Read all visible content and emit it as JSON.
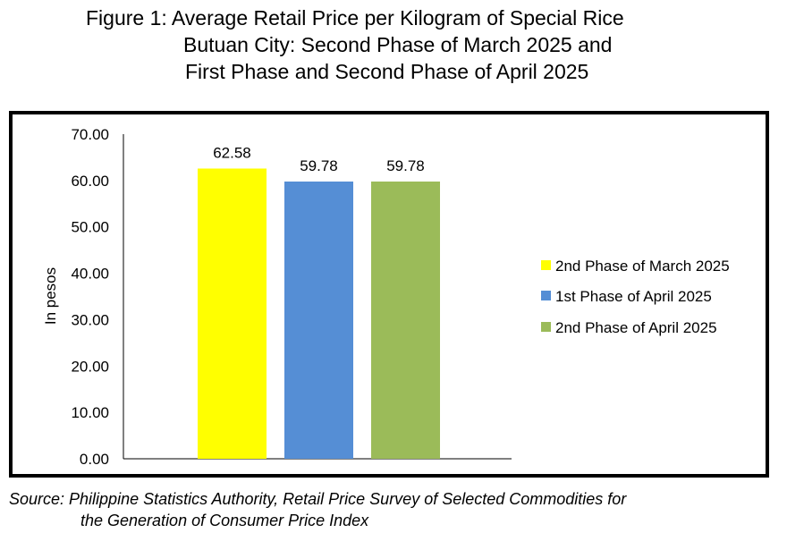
{
  "title": {
    "line1": "Figure 1: Average Retail Price per Kilogram of Special Rice",
    "line2": "Butuan City: Second Phase of March 2025 and",
    "line3": "First Phase and Second Phase of April 2025"
  },
  "source": {
    "line1": "Source: Philippine Statistics Authority, Retail Price Survey of Selected Commodities for",
    "line2": "the Generation of Consumer Price Index"
  },
  "chart_data": {
    "type": "bar",
    "categories": [
      "2nd Phase of March 2025",
      "1st Phase of April 2025",
      "2nd Phase of April 2025"
    ],
    "values": [
      62.58,
      59.78,
      59.78
    ],
    "data_labels": [
      "62.58",
      "59.78",
      "59.78"
    ],
    "colors": [
      "#FFFF00",
      "#558ED5",
      "#9BBB59"
    ],
    "ylabel": "In pesos",
    "ylim": [
      0,
      70
    ],
    "yticks": [
      "0.00",
      "10.00",
      "20.00",
      "30.00",
      "40.00",
      "50.00",
      "60.00",
      "70.00"
    ],
    "legend": [
      "2nd Phase of March 2025",
      "1st Phase of April 2025",
      "2nd Phase of April 2025"
    ],
    "legend_position": "right",
    "grid": false
  }
}
